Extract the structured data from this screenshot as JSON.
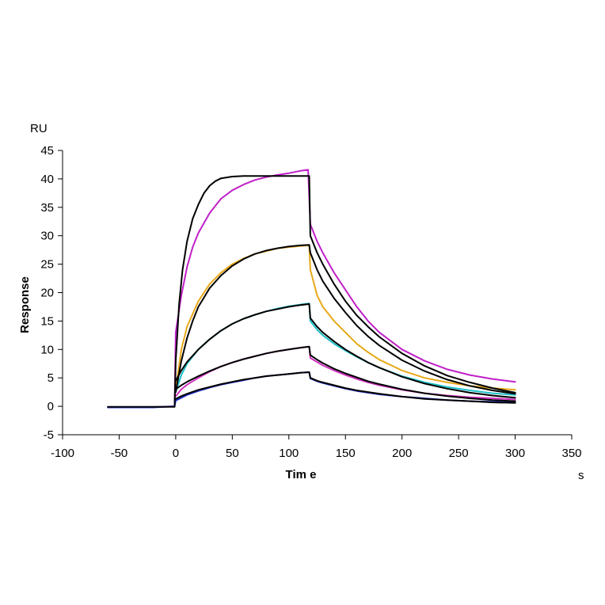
{
  "chart_data": {
    "type": "line",
    "xlabel": "Tim e",
    "xunit": "s",
    "ylabel": "Response",
    "yunit": "RU",
    "xlim": [
      -100,
      350
    ],
    "ylim": [
      -5,
      45
    ],
    "x_ticks": [
      -100,
      -50,
      0,
      50,
      100,
      150,
      200,
      250,
      300,
      350
    ],
    "y_ticks": [
      -5,
      0,
      5,
      10,
      15,
      20,
      25,
      30,
      35,
      40,
      45
    ],
    "x_tick_labels": [
      "-100",
      "-50",
      "0",
      "50",
      "100",
      "150",
      "200",
      "250",
      "300",
      "350"
    ],
    "y_tick_labels": [
      "-5",
      "0",
      "5",
      "10",
      "15",
      "20",
      "25",
      "30",
      "35",
      "40",
      "45"
    ],
    "grid": false,
    "legend": "none",
    "series": [
      {
        "color": "#c020c8",
        "points": [
          [
            -60,
            -0.2
          ],
          [
            -30,
            -0.2
          ],
          [
            -1,
            0
          ],
          [
            0,
            13
          ],
          [
            5,
            19.5
          ],
          [
            10,
            24.5
          ],
          [
            15,
            28
          ],
          [
            20,
            30.5
          ],
          [
            30,
            34
          ],
          [
            40,
            36.5
          ],
          [
            50,
            38
          ],
          [
            60,
            39
          ],
          [
            70,
            39.8
          ],
          [
            80,
            40.3
          ],
          [
            90,
            40.7
          ],
          [
            100,
            41
          ],
          [
            110,
            41.4
          ],
          [
            117,
            41.6
          ],
          [
            119,
            32
          ],
          [
            125,
            29
          ],
          [
            130,
            27
          ],
          [
            140,
            23.5
          ],
          [
            150,
            20.5
          ],
          [
            160,
            17.5
          ],
          [
            170,
            15
          ],
          [
            180,
            13
          ],
          [
            200,
            10
          ],
          [
            220,
            8
          ],
          [
            240,
            6.5
          ],
          [
            260,
            5.5
          ],
          [
            280,
            4.8
          ],
          [
            300,
            4.3
          ]
        ]
      },
      {
        "color": "#e8a818",
        "points": [
          [
            0,
            3
          ],
          [
            5,
            10
          ],
          [
            10,
            14
          ],
          [
            20,
            18.5
          ],
          [
            30,
            21.5
          ],
          [
            40,
            23.5
          ],
          [
            50,
            25
          ],
          [
            60,
            26
          ],
          [
            70,
            26.8
          ],
          [
            80,
            27.3
          ],
          [
            90,
            27.8
          ],
          [
            100,
            28
          ],
          [
            110,
            28.2
          ],
          [
            118,
            28.3
          ],
          [
            119,
            24
          ],
          [
            125,
            19.5
          ],
          [
            130,
            17.5
          ],
          [
            140,
            15
          ],
          [
            150,
            13
          ],
          [
            160,
            11
          ],
          [
            170,
            9.5
          ],
          [
            180,
            8.2
          ],
          [
            200,
            6.3
          ],
          [
            220,
            5
          ],
          [
            240,
            4.2
          ],
          [
            260,
            3.6
          ],
          [
            280,
            3.2
          ],
          [
            300,
            2.9
          ]
        ]
      },
      {
        "color": "#20c0c8",
        "points": [
          [
            0,
            2.5
          ],
          [
            5,
            5.5
          ],
          [
            10,
            7.5
          ],
          [
            20,
            10
          ],
          [
            30,
            11.8
          ],
          [
            40,
            13.3
          ],
          [
            50,
            14.5
          ],
          [
            60,
            15.4
          ],
          [
            70,
            16.1
          ],
          [
            80,
            16.7
          ],
          [
            90,
            17.2
          ],
          [
            100,
            17.6
          ],
          [
            110,
            17.9
          ],
          [
            118,
            18.1
          ],
          [
            119,
            15
          ],
          [
            125,
            13.5
          ],
          [
            130,
            12.5
          ],
          [
            140,
            11
          ],
          [
            150,
            9.8
          ],
          [
            160,
            8.7
          ],
          [
            170,
            7.7
          ],
          [
            180,
            6.8
          ],
          [
            200,
            5.3
          ],
          [
            220,
            4.2
          ],
          [
            240,
            3.4
          ],
          [
            260,
            2.8
          ],
          [
            280,
            2.3
          ],
          [
            300,
            2
          ]
        ]
      },
      {
        "color": "#d030c0",
        "points": [
          [
            0,
            1.8
          ],
          [
            5,
            3
          ],
          [
            10,
            3.8
          ],
          [
            20,
            5
          ],
          [
            30,
            6.1
          ],
          [
            40,
            7
          ],
          [
            50,
            7.7
          ],
          [
            60,
            8.3
          ],
          [
            70,
            8.8
          ],
          [
            80,
            9.3
          ],
          [
            90,
            9.7
          ],
          [
            100,
            10
          ],
          [
            110,
            10.3
          ],
          [
            118,
            10.5
          ],
          [
            119,
            8.5
          ],
          [
            125,
            7.8
          ],
          [
            130,
            7.2
          ],
          [
            140,
            6.3
          ],
          [
            150,
            5.5
          ],
          [
            160,
            4.8
          ],
          [
            170,
            4.2
          ],
          [
            180,
            3.7
          ],
          [
            200,
            2.9
          ],
          [
            220,
            2.3
          ],
          [
            240,
            1.9
          ],
          [
            260,
            1.6
          ],
          [
            280,
            1.4
          ],
          [
            300,
            1.2
          ]
        ]
      },
      {
        "color": "#2030c8",
        "points": [
          [
            -60,
            -0.2
          ],
          [
            -20,
            -0.2
          ],
          [
            -1,
            0
          ],
          [
            0,
            1
          ],
          [
            5,
            1.5
          ],
          [
            10,
            2
          ],
          [
            20,
            2.7
          ],
          [
            30,
            3.3
          ],
          [
            40,
            3.8
          ],
          [
            50,
            4.2
          ],
          [
            60,
            4.6
          ],
          [
            70,
            5
          ],
          [
            80,
            5.3
          ],
          [
            90,
            5.5
          ],
          [
            100,
            5.7
          ],
          [
            110,
            5.9
          ],
          [
            118,
            6
          ],
          [
            119,
            4.9
          ],
          [
            125,
            4.4
          ],
          [
            130,
            4.1
          ],
          [
            140,
            3.6
          ],
          [
            150,
            3.1
          ],
          [
            160,
            2.7
          ],
          [
            170,
            2.4
          ],
          [
            180,
            2.1
          ],
          [
            200,
            1.7
          ],
          [
            220,
            1.4
          ],
          [
            240,
            1.1
          ],
          [
            260,
            0.9
          ],
          [
            280,
            0.8
          ],
          [
            300,
            0.7
          ]
        ]
      },
      {
        "color": "#000000",
        "points": [
          [
            -60,
            -0.1
          ],
          [
            -1,
            -0.1
          ],
          [
            0,
            8
          ],
          [
            3,
            18
          ],
          [
            6,
            24
          ],
          [
            10,
            29
          ],
          [
            15,
            33
          ],
          [
            20,
            35.5
          ],
          [
            25,
            37.5
          ],
          [
            30,
            38.8
          ],
          [
            35,
            39.6
          ],
          [
            40,
            40.1
          ],
          [
            50,
            40.4
          ],
          [
            60,
            40.5
          ],
          [
            80,
            40.5
          ],
          [
            100,
            40.5
          ],
          [
            118,
            40.5
          ],
          [
            119,
            30
          ],
          [
            125,
            27
          ],
          [
            130,
            25
          ],
          [
            140,
            21.5
          ],
          [
            150,
            18.5
          ],
          [
            160,
            16
          ],
          [
            170,
            14
          ],
          [
            180,
            12.2
          ],
          [
            200,
            9.3
          ],
          [
            220,
            7.1
          ],
          [
            240,
            5.4
          ],
          [
            260,
            4.2
          ],
          [
            280,
            3.2
          ],
          [
            300,
            2.4
          ]
        ]
      },
      {
        "color": "#000000",
        "points": [
          [
            0,
            2.5
          ],
          [
            5,
            8
          ],
          [
            10,
            12
          ],
          [
            15,
            15
          ],
          [
            20,
            17.5
          ],
          [
            30,
            20.8
          ],
          [
            40,
            23
          ],
          [
            50,
            24.7
          ],
          [
            60,
            25.9
          ],
          [
            70,
            26.8
          ],
          [
            80,
            27.4
          ],
          [
            90,
            27.8
          ],
          [
            100,
            28.1
          ],
          [
            110,
            28.3
          ],
          [
            118,
            28.4
          ],
          [
            119,
            27
          ],
          [
            125,
            24
          ],
          [
            130,
            22
          ],
          [
            140,
            19
          ],
          [
            150,
            16.5
          ],
          [
            160,
            14.2
          ],
          [
            170,
            12.3
          ],
          [
            180,
            10.7
          ],
          [
            200,
            8.1
          ],
          [
            220,
            6.2
          ],
          [
            240,
            4.7
          ],
          [
            260,
            3.6
          ],
          [
            280,
            2.8
          ],
          [
            300,
            2.2
          ]
        ]
      },
      {
        "color": "#000000",
        "points": [
          [
            0,
            4.5
          ],
          [
            5,
            6.3
          ],
          [
            10,
            7.8
          ],
          [
            20,
            10
          ],
          [
            30,
            11.8
          ],
          [
            40,
            13.3
          ],
          [
            50,
            14.5
          ],
          [
            60,
            15.4
          ],
          [
            70,
            16.1
          ],
          [
            80,
            16.7
          ],
          [
            90,
            17.1
          ],
          [
            100,
            17.5
          ],
          [
            110,
            17.8
          ],
          [
            118,
            18
          ],
          [
            119,
            15.5
          ],
          [
            125,
            14
          ],
          [
            130,
            13
          ],
          [
            140,
            11.4
          ],
          [
            150,
            10
          ],
          [
            160,
            8.8
          ],
          [
            170,
            7.7
          ],
          [
            180,
            6.8
          ],
          [
            200,
            5.2
          ],
          [
            220,
            4
          ],
          [
            240,
            3.1
          ],
          [
            260,
            2.4
          ],
          [
            280,
            1.9
          ],
          [
            300,
            1.5
          ]
        ]
      },
      {
        "color": "#000000",
        "points": [
          [
            0,
            3
          ],
          [
            5,
            3.7
          ],
          [
            10,
            4.3
          ],
          [
            20,
            5.3
          ],
          [
            30,
            6.2
          ],
          [
            40,
            7
          ],
          [
            50,
            7.7
          ],
          [
            60,
            8.3
          ],
          [
            70,
            8.8
          ],
          [
            80,
            9.3
          ],
          [
            90,
            9.7
          ],
          [
            100,
            10
          ],
          [
            110,
            10.3
          ],
          [
            118,
            10.5
          ],
          [
            119,
            9
          ],
          [
            125,
            8.2
          ],
          [
            130,
            7.6
          ],
          [
            140,
            6.6
          ],
          [
            150,
            5.8
          ],
          [
            160,
            5.1
          ],
          [
            170,
            4.4
          ],
          [
            180,
            3.9
          ],
          [
            200,
            3
          ],
          [
            220,
            2.3
          ],
          [
            240,
            1.8
          ],
          [
            260,
            1.4
          ],
          [
            280,
            1.1
          ],
          [
            300,
            0.9
          ]
        ]
      },
      {
        "color": "#000000",
        "points": [
          [
            0,
            1.3
          ],
          [
            5,
            1.8
          ],
          [
            10,
            2.2
          ],
          [
            20,
            2.9
          ],
          [
            30,
            3.4
          ],
          [
            40,
            3.9
          ],
          [
            50,
            4.3
          ],
          [
            60,
            4.7
          ],
          [
            70,
            5
          ],
          [
            80,
            5.3
          ],
          [
            90,
            5.5
          ],
          [
            100,
            5.7
          ],
          [
            110,
            5.9
          ],
          [
            118,
            6
          ],
          [
            119,
            5
          ],
          [
            125,
            4.5
          ],
          [
            130,
            4.2
          ],
          [
            140,
            3.7
          ],
          [
            150,
            3.2
          ],
          [
            160,
            2.8
          ],
          [
            170,
            2.5
          ],
          [
            180,
            2.2
          ],
          [
            200,
            1.7
          ],
          [
            220,
            1.3
          ],
          [
            240,
            1.1
          ],
          [
            260,
            0.9
          ],
          [
            280,
            0.7
          ],
          [
            300,
            0.6
          ]
        ]
      }
    ]
  }
}
